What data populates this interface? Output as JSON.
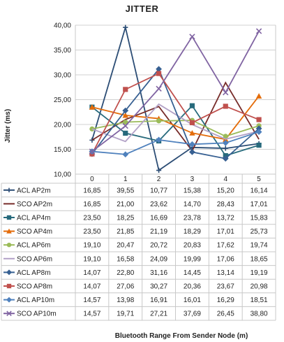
{
  "chart_data": {
    "type": "line",
    "title": "JITTER",
    "xlabel": "Bluetooth Range From Sender Node (m)",
    "ylabel": "Jitter (ms)",
    "ylim": [
      10,
      40
    ],
    "yticks": [
      "10,00",
      "15,00",
      "20,00",
      "25,00",
      "30,00",
      "35,00",
      "40,00"
    ],
    "categories": [
      "0",
      "1",
      "2",
      "3",
      "4",
      "5"
    ],
    "grid": true,
    "legend": "data-table-below",
    "series": [
      {
        "name": "ACL AP2m",
        "color": "#2c4d75",
        "marker": "plus",
        "values": [
          16.85,
          39.55,
          10.77,
          15.38,
          15.2,
          16.14
        ],
        "labels": [
          "16,85",
          "39,55",
          "10,77",
          "15,38",
          "15,20",
          "16,14"
        ]
      },
      {
        "name": "SCO AP2m",
        "color": "#772c2a",
        "marker": "none",
        "values": [
          16.85,
          21.0,
          23.62,
          14.7,
          28.43,
          17.01
        ],
        "labels": [
          "16,85",
          "21,00",
          "23,62",
          "14,70",
          "28,43",
          "17,01"
        ]
      },
      {
        "name": "ACL AP4m",
        "color": "#276a7c",
        "marker": "square",
        "values": [
          23.5,
          18.25,
          16.69,
          23.78,
          13.72,
          15.83
        ],
        "labels": [
          "23,50",
          "18,25",
          "16,69",
          "23,78",
          "13,72",
          "15,83"
        ]
      },
      {
        "name": "SCO AP4m",
        "color": "#e46c0a",
        "marker": "triangle",
        "values": [
          23.5,
          21.85,
          21.19,
          18.29,
          17.01,
          25.73
        ],
        "labels": [
          "23,50",
          "21,85",
          "21,19",
          "18,29",
          "17,01",
          "25,73"
        ]
      },
      {
        "name": "ACL AP6m",
        "color": "#9bbb59",
        "marker": "circle",
        "values": [
          19.1,
          20.47,
          20.72,
          20.83,
          17.62,
          19.74
        ],
        "labels": [
          "19,10",
          "20,47",
          "20,72",
          "20,83",
          "17,62",
          "19,74"
        ]
      },
      {
        "name": "SCO AP6m",
        "color": "#b3a2c7",
        "marker": "none",
        "values": [
          19.1,
          16.58,
          24.09,
          19.99,
          17.06,
          18.65
        ],
        "labels": [
          "19,10",
          "16,58",
          "24,09",
          "19,99",
          "17,06",
          "18,65"
        ]
      },
      {
        "name": "ACL AP8m",
        "color": "#376092",
        "marker": "diamond",
        "values": [
          14.07,
          22.8,
          31.16,
          14.45,
          13.14,
          19.19
        ],
        "labels": [
          "14,07",
          "22,80",
          "31,16",
          "14,45",
          "13,14",
          "19,19"
        ]
      },
      {
        "name": "SCO AP8m",
        "color": "#c0504d",
        "marker": "square",
        "values": [
          14.07,
          27.06,
          30.27,
          20.36,
          23.67,
          20.98
        ],
        "labels": [
          "14,07",
          "27,06",
          "30,27",
          "20,36",
          "23,67",
          "20,98"
        ]
      },
      {
        "name": "ACL AP10m",
        "color": "#4f81bd",
        "marker": "diamond",
        "values": [
          14.57,
          13.98,
          16.91,
          16.01,
          16.29,
          18.51
        ],
        "labels": [
          "14,57",
          "13,98",
          "16,91",
          "16,01",
          "16,29",
          "18,51"
        ]
      },
      {
        "name": "SCO AP10m",
        "color": "#8064a2",
        "marker": "x",
        "values": [
          14.57,
          19.71,
          27.21,
          37.69,
          26.45,
          38.8
        ],
        "labels": [
          "14,57",
          "19,71",
          "27,21",
          "37,69",
          "26,45",
          "38,80"
        ]
      }
    ]
  }
}
